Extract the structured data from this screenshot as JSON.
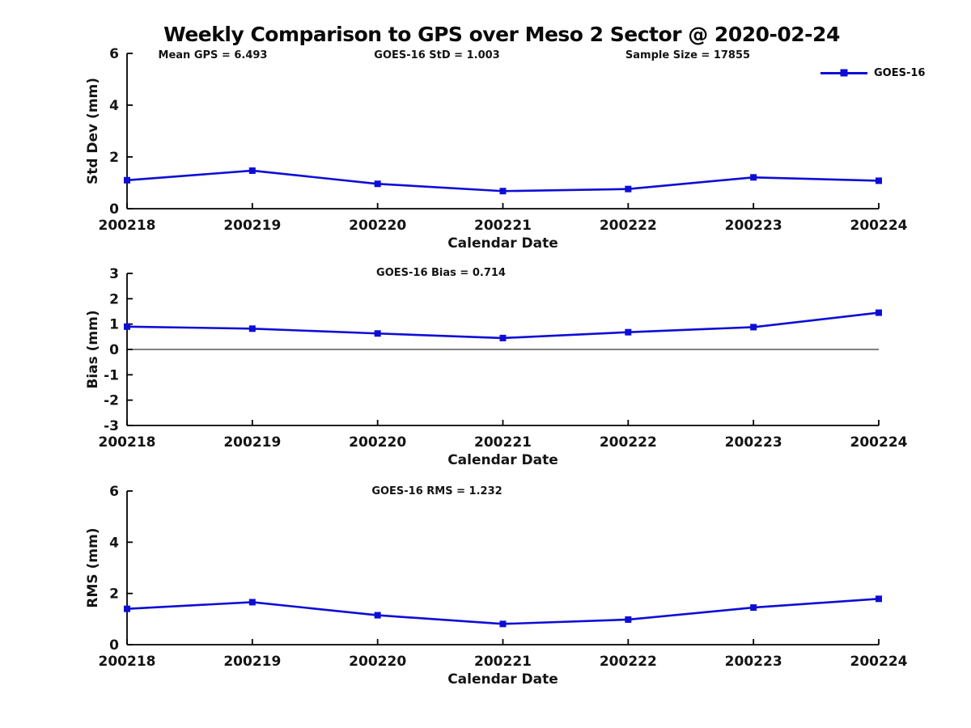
{
  "page": {
    "title": "Weekly Comparison to GPS over Meso 2 Sector @ 2020-02-24"
  },
  "legend": {
    "label": "GOES-16",
    "position": "top-right",
    "color": "#0d0dd6",
    "marker": "square"
  },
  "chart_data": [
    {
      "type": "line",
      "name": "std-dev",
      "annotations": [
        "Mean GPS = 6.493",
        "GOES-16 StD = 1.003",
        "Sample Size = 17855"
      ],
      "xlabel": "Calendar Date",
      "ylabel": "Std Dev (mm)",
      "categories": [
        "200218",
        "200219",
        "200220",
        "200221",
        "200222",
        "200223",
        "200224"
      ],
      "series": [
        {
          "name": "GOES-16",
          "color": "#0d0dd6",
          "values": [
            1.1,
            1.47,
            0.96,
            0.68,
            0.76,
            1.21,
            1.08
          ]
        }
      ],
      "ylim": [
        0,
        6
      ],
      "yticks": [
        0,
        2,
        4,
        6
      ],
      "zero_line": false,
      "grid": false
    },
    {
      "type": "line",
      "name": "bias",
      "annotations": [
        "GOES-16 Bias  = 0.714"
      ],
      "xlabel": "Calendar Date",
      "ylabel": "Bias (mm)",
      "categories": [
        "200218",
        "200219",
        "200220",
        "200221",
        "200222",
        "200223",
        "200224"
      ],
      "series": [
        {
          "name": "GOES-16",
          "color": "#0d0dd6",
          "values": [
            0.9,
            0.82,
            0.63,
            0.45,
            0.68,
            0.88,
            1.45
          ]
        }
      ],
      "ylim": [
        -3,
        3
      ],
      "yticks": [
        -3,
        -2,
        -1,
        0,
        1,
        2,
        3
      ],
      "zero_line": true,
      "grid": false
    },
    {
      "type": "line",
      "name": "rms",
      "annotations": [
        "GOES-16 RMS = 1.232"
      ],
      "xlabel": "Calendar Date",
      "ylabel": "RMS (mm)",
      "categories": [
        "200218",
        "200219",
        "200220",
        "200221",
        "200222",
        "200223",
        "200224"
      ],
      "series": [
        {
          "name": "GOES-16",
          "color": "#0d0dd6",
          "values": [
            1.4,
            1.66,
            1.15,
            0.81,
            0.98,
            1.45,
            1.79
          ]
        }
      ],
      "ylim": [
        0,
        6
      ],
      "yticks": [
        0,
        2,
        4,
        6
      ],
      "zero_line": false,
      "grid": false
    }
  ]
}
